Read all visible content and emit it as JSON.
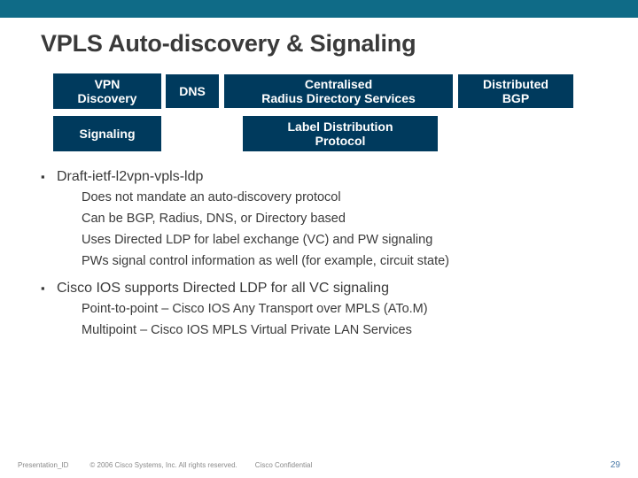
{
  "title": "VPLS Auto-discovery & Signaling",
  "boxes": {
    "vpn_discovery": "VPN\nDiscovery",
    "dns": "DNS",
    "radius": "Centralised\nRadius Directory Services",
    "bgp": "Distributed\nBGP",
    "signaling": "Signaling",
    "ldp": "Label Distribution\nProtocol"
  },
  "bullets": {
    "b1": "Draft-ietf-l2vpn-vpls-ldp",
    "b1_sub": [
      "Does not mandate an auto-discovery protocol",
      "Can be BGP, Radius, DNS, or Directory based",
      "Uses Directed LDP for label exchange (VC) and PW signaling",
      "PWs signal control information as well (for example, circuit state)"
    ],
    "b2": "Cisco IOS supports Directed LDP for all VC signaling",
    "b2_sub": [
      "Point-to-point – Cisco IOS Any Transport over MPLS (ATo.M)",
      "Multipoint – Cisco IOS MPLS Virtual Private LAN Services"
    ]
  },
  "footer": {
    "presentation_id": "Presentation_ID",
    "copyright": "© 2006 Cisco Systems, Inc. All rights reserved.",
    "confidential": "Cisco Confidential",
    "page": "29"
  },
  "colors": {
    "top_bar": "#0f6b87",
    "box_bg": "#003a5d",
    "text": "#3a3a3a",
    "footer_text": "#8a8a8a",
    "page_num": "#4a7aa8"
  }
}
